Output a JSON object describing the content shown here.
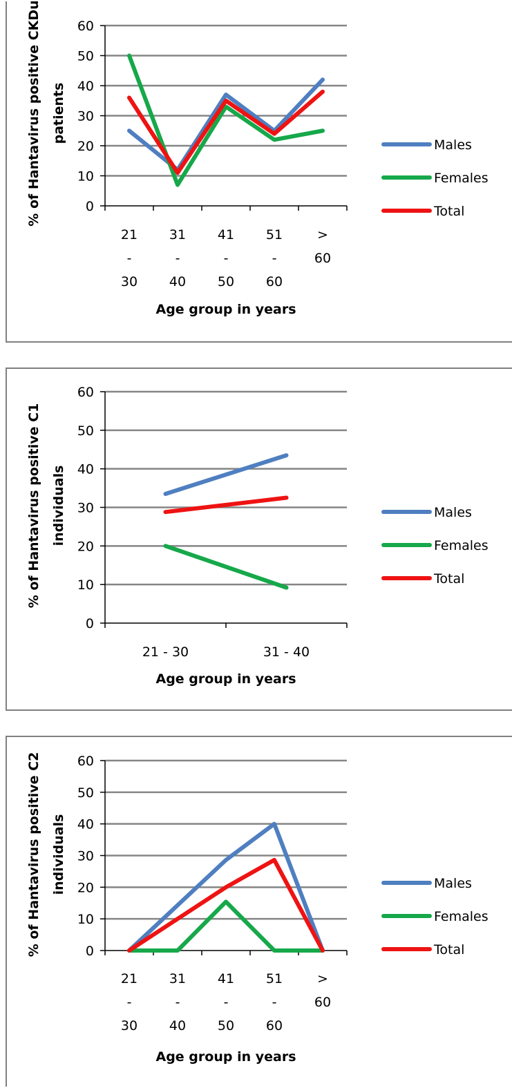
{
  "colors": {
    "Males": "#4f7fc0",
    "Females": "#16a84a",
    "Total": "#ee1313",
    "grid": "#858585",
    "axis": "#000000"
  },
  "chart_data": [
    {
      "type": "line",
      "title": "",
      "categories": [
        [
          "21",
          "-",
          "30"
        ],
        [
          "31",
          "-",
          "40"
        ],
        [
          "41",
          "-",
          "50"
        ],
        [
          "51",
          "-",
          "60"
        ],
        [
          ">",
          "60"
        ]
      ],
      "series": [
        {
          "name": "Males",
          "values": [
            25,
            12,
            37,
            25,
            42
          ]
        },
        {
          "name": "Females",
          "values": [
            50,
            7,
            33,
            22,
            25
          ]
        },
        {
          "name": "Total",
          "values": [
            36,
            11,
            35,
            24,
            38
          ]
        }
      ],
      "xlabel": "Age group in years",
      "ylabel": [
        "% of Hantavirus positive CKDu",
        "patients"
      ],
      "ylim": [
        0,
        60
      ],
      "yticks": [
        "0",
        "10",
        "20",
        "30",
        "40",
        "50",
        "60"
      ],
      "grid": true,
      "legend": "right"
    },
    {
      "type": "line",
      "title": "",
      "categories": [
        [
          "21 - 30"
        ],
        [
          "31 - 40"
        ]
      ],
      "series": [
        {
          "name": "Males",
          "values": [
            33.5,
            43.5
          ]
        },
        {
          "name": "Females",
          "values": [
            20,
            9.2
          ]
        },
        {
          "name": "Total",
          "values": [
            28.8,
            32.5
          ]
        }
      ],
      "xlabel": "Age group in years",
      "ylabel": [
        "% of Hantavirus positive C1",
        "individuals"
      ],
      "ylim": [
        0,
        60
      ],
      "yticks": [
        "0",
        "10",
        "20",
        "30",
        "40",
        "50",
        "60"
      ],
      "grid": true,
      "legend": "right"
    },
    {
      "type": "line",
      "title": "",
      "categories": [
        [
          "21",
          "-",
          "30"
        ],
        [
          "31",
          "-",
          "40"
        ],
        [
          "41",
          "-",
          "50"
        ],
        [
          "51",
          "-",
          "60"
        ],
        [
          ">",
          "60"
        ]
      ],
      "series": [
        {
          "name": "Males",
          "values": [
            0,
            14.3,
            28.6,
            40,
            0
          ]
        },
        {
          "name": "Females",
          "values": [
            0,
            0,
            15.4,
            0,
            0
          ]
        },
        {
          "name": "Total",
          "values": [
            0,
            10,
            20,
            28.6,
            0
          ]
        }
      ],
      "xlabel": "Age group in years",
      "ylabel": [
        "% of Hantavirus positive C2",
        "individuals"
      ],
      "ylim": [
        0,
        60
      ],
      "yticks": [
        "0",
        "10",
        "20",
        "30",
        "40",
        "50",
        "60"
      ],
      "grid": true,
      "legend": "right"
    }
  ]
}
